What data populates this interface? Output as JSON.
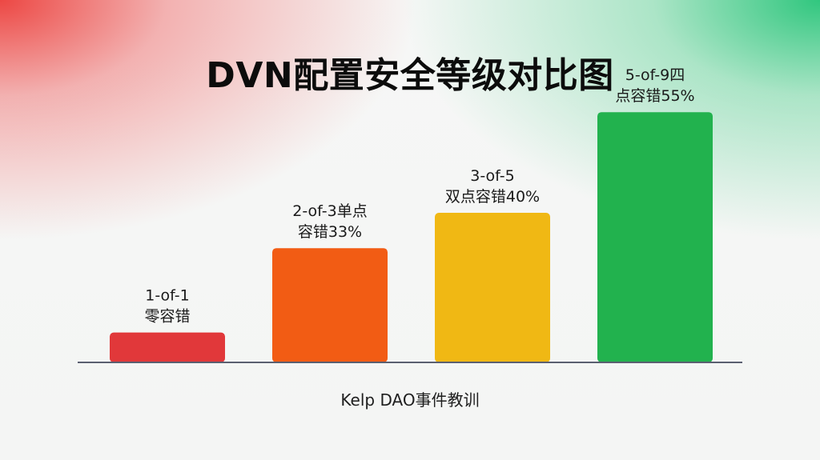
{
  "chart_data": {
    "type": "bar",
    "title": "DVN配置安全等级对比图",
    "categories": [
      [
        "1-of-1",
        "零容错"
      ],
      [
        "2-of-3单点",
        "容错33%"
      ],
      [
        "3-of-5",
        "双点容错40%"
      ],
      [
        "5-of-9四",
        "点容错55%"
      ]
    ],
    "values": [
      11,
      42,
      55,
      92
    ],
    "ylim": [
      0,
      100
    ],
    "colors": [
      "#e1383a",
      "#f25c14",
      "#f0b814",
      "#22b24e"
    ],
    "axis_line_color": "#5a5f70",
    "xlabel": "Kelp DAO事件教训",
    "grid": false,
    "legend": "none"
  }
}
